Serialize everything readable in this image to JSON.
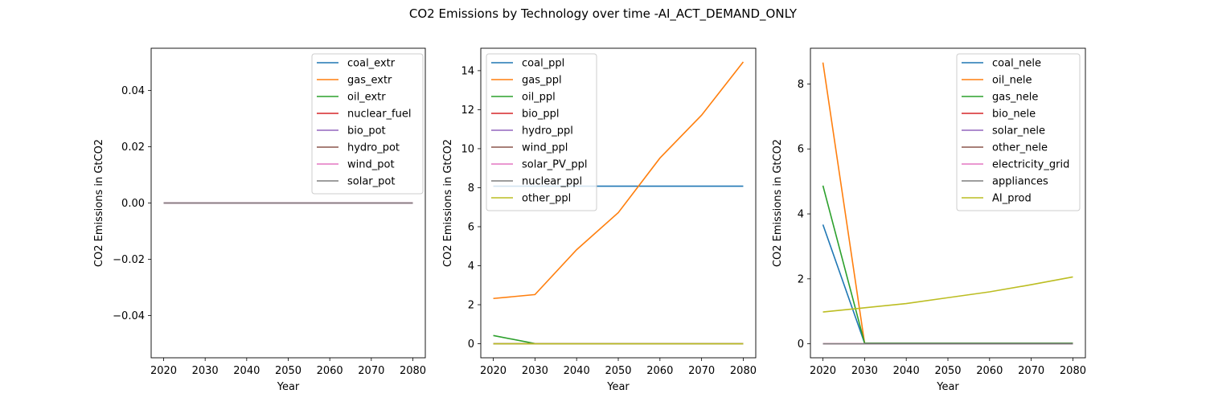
{
  "figure": {
    "suptitle": "CO2 Emissions by Technology over time -AI_ACT_DEMAND_ONLY"
  },
  "chart_data": [
    {
      "type": "line",
      "title": "",
      "xlabel": "Year",
      "ylabel": "CO2 Emissions in GtCO2",
      "x": [
        2020,
        2030,
        2040,
        2050,
        2060,
        2070,
        2080
      ],
      "xticks": [
        2020,
        2030,
        2040,
        2050,
        2060,
        2070,
        2080
      ],
      "xlim": [
        2017,
        2083
      ],
      "ylim": [
        -0.055,
        0.055
      ],
      "yticks": [
        -0.04,
        -0.02,
        0.0,
        0.02,
        0.04
      ],
      "ytick_labels": [
        "−0.04",
        "−0.02",
        "0.00",
        "0.02",
        "0.04"
      ],
      "legend_position": "upper right",
      "series": [
        {
          "name": "coal_extr",
          "color": "#1f77b4",
          "values": [
            0,
            0,
            0,
            0,
            0,
            0,
            0
          ]
        },
        {
          "name": "gas_extr",
          "color": "#ff7f0e",
          "values": [
            0,
            0,
            0,
            0,
            0,
            0,
            0
          ]
        },
        {
          "name": "oil_extr",
          "color": "#2ca02c",
          "values": [
            0,
            0,
            0,
            0,
            0,
            0,
            0
          ]
        },
        {
          "name": "nuclear_fuel",
          "color": "#d62728",
          "values": [
            0,
            0,
            0,
            0,
            0,
            0,
            0
          ]
        },
        {
          "name": "bio_pot",
          "color": "#9467bd",
          "values": [
            0,
            0,
            0,
            0,
            0,
            0,
            0
          ]
        },
        {
          "name": "hydro_pot",
          "color": "#8c564b",
          "values": [
            0,
            0,
            0,
            0,
            0,
            0,
            0
          ]
        },
        {
          "name": "wind_pot",
          "color": "#e377c2",
          "values": [
            0,
            0,
            0,
            0,
            0,
            0,
            0
          ]
        },
        {
          "name": "solar_pot",
          "color": "#7f7f7f",
          "values": [
            0,
            0,
            0,
            0,
            0,
            0,
            0
          ]
        }
      ]
    },
    {
      "type": "line",
      "title": "",
      "xlabel": "Year",
      "ylabel": "CO2 Emissions in GtCO2",
      "x": [
        2020,
        2030,
        2040,
        2050,
        2060,
        2070,
        2080
      ],
      "xticks": [
        2020,
        2030,
        2040,
        2050,
        2060,
        2070,
        2080
      ],
      "xlim": [
        2017,
        2083
      ],
      "ylim": [
        -0.72,
        15.15
      ],
      "yticks": [
        0,
        2,
        4,
        6,
        8,
        10,
        12,
        14
      ],
      "ytick_labels": [
        "0",
        "2",
        "4",
        "6",
        "8",
        "10",
        "12",
        "14"
      ],
      "legend_position": "upper left",
      "series": [
        {
          "name": "coal_ppl",
          "color": "#1f77b4",
          "values": [
            8.08,
            8.08,
            8.08,
            8.08,
            8.08,
            8.08,
            8.08
          ]
        },
        {
          "name": "gas_ppl",
          "color": "#ff7f0e",
          "values": [
            2.32,
            2.52,
            4.82,
            6.72,
            9.52,
            11.72,
            14.45
          ]
        },
        {
          "name": "oil_ppl",
          "color": "#2ca02c",
          "values": [
            0.42,
            0.01,
            0.01,
            0.01,
            0.01,
            0.01,
            0.01
          ]
        },
        {
          "name": "bio_ppl",
          "color": "#d62728",
          "values": [
            0,
            0,
            0,
            0,
            0,
            0,
            0
          ]
        },
        {
          "name": "hydro_ppl",
          "color": "#9467bd",
          "values": [
            0,
            0,
            0,
            0,
            0,
            0,
            0
          ]
        },
        {
          "name": "wind_ppl",
          "color": "#8c564b",
          "values": [
            0,
            0,
            0,
            0,
            0,
            0,
            0
          ]
        },
        {
          "name": "solar_PV_ppl",
          "color": "#e377c2",
          "values": [
            0,
            0,
            0,
            0,
            0,
            0,
            0
          ]
        },
        {
          "name": "nuclear_ppl",
          "color": "#7f7f7f",
          "values": [
            0,
            0,
            0,
            0,
            0,
            0,
            0
          ]
        },
        {
          "name": "other_ppl",
          "color": "#bcbd22",
          "values": [
            0,
            0,
            0,
            0,
            0,
            0,
            0
          ]
        }
      ]
    },
    {
      "type": "line",
      "title": "",
      "xlabel": "Year",
      "ylabel": "CO2 Emissions in GtCO2",
      "x": [
        2020,
        2030,
        2040,
        2050,
        2060,
        2070,
        2080
      ],
      "xticks": [
        2020,
        2030,
        2040,
        2050,
        2060,
        2070,
        2080
      ],
      "xlim": [
        2017,
        2083
      ],
      "ylim": [
        -0.43,
        9.1
      ],
      "yticks": [
        0,
        2,
        4,
        6,
        8
      ],
      "ytick_labels": [
        "0",
        "2",
        "4",
        "6",
        "8"
      ],
      "legend_position": "upper right",
      "series": [
        {
          "name": "coal_nele",
          "color": "#1f77b4",
          "values": [
            3.67,
            0.02,
            0.02,
            0.02,
            0.02,
            0.02,
            0.02
          ]
        },
        {
          "name": "oil_nele",
          "color": "#ff7f0e",
          "values": [
            8.66,
            0.02,
            0.02,
            0.02,
            0.02,
            0.02,
            0.02
          ]
        },
        {
          "name": "gas_nele",
          "color": "#2ca02c",
          "values": [
            4.87,
            0.02,
            0.02,
            0.02,
            0.02,
            0.02,
            0.02
          ]
        },
        {
          "name": "bio_nele",
          "color": "#d62728",
          "values": [
            0,
            0,
            0,
            0,
            0,
            0,
            0
          ]
        },
        {
          "name": "solar_nele",
          "color": "#9467bd",
          "values": [
            0,
            0,
            0,
            0,
            0,
            0,
            0
          ]
        },
        {
          "name": "other_nele",
          "color": "#8c564b",
          "values": [
            0,
            0,
            0,
            0,
            0,
            0,
            0
          ]
        },
        {
          "name": "electricity_grid",
          "color": "#e377c2",
          "values": [
            0,
            0,
            0,
            0,
            0,
            0,
            0
          ]
        },
        {
          "name": "appliances",
          "color": "#7f7f7f",
          "values": [
            0,
            0,
            0,
            0,
            0,
            0,
            0
          ]
        },
        {
          "name": "AI_prod",
          "color": "#bcbd22",
          "values": [
            0.98,
            1.11,
            1.24,
            1.42,
            1.6,
            1.82,
            2.06
          ]
        }
      ]
    }
  ]
}
